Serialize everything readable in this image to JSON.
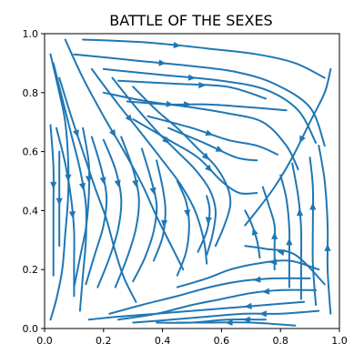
{
  "chart_data": {
    "type": "streamplot",
    "title": "BATTLE OF THE SEXES",
    "xlabel": "",
    "ylabel": "",
    "xlim": [
      0,
      1
    ],
    "ylim": [
      0,
      1
    ],
    "xticks": [
      "0.0",
      "0.2",
      "0.4",
      "0.6",
      "0.8",
      "1.0"
    ],
    "yticks": [
      "0.0",
      "0.2",
      "0.4",
      "0.6",
      "0.8",
      "1.0"
    ],
    "grid": false,
    "line_color": "#1f77b4",
    "interior_equilibrium": [
      0.67,
      0.33
    ],
    "streamlines": [
      {
        "points": [
          [
            0.13,
            0.98
          ],
          [
            0.35,
            0.97
          ],
          [
            0.55,
            0.95
          ],
          [
            0.72,
            0.93
          ],
          [
            0.85,
            0.9
          ],
          [
            0.95,
            0.85
          ]
        ],
        "arrow": 2
      },
      {
        "points": [
          [
            0.1,
            0.93
          ],
          [
            0.3,
            0.91
          ],
          [
            0.5,
            0.89
          ],
          [
            0.65,
            0.87
          ],
          [
            0.78,
            0.83
          ],
          [
            0.9,
            0.75
          ],
          [
            0.95,
            0.62
          ]
        ],
        "arrow": 2
      },
      {
        "points": [
          [
            0.2,
            0.88
          ],
          [
            0.4,
            0.86
          ],
          [
            0.6,
            0.84
          ],
          [
            0.75,
            0.81
          ],
          [
            0.86,
            0.74
          ],
          [
            0.92,
            0.63
          ]
        ],
        "arrow": 2
      },
      {
        "points": [
          [
            0.25,
            0.84
          ],
          [
            0.45,
            0.83
          ],
          [
            0.62,
            0.82
          ],
          [
            0.75,
            0.78
          ]
        ],
        "arrow": 2
      },
      {
        "points": [
          [
            0.2,
            0.8
          ],
          [
            0.35,
            0.77
          ],
          [
            0.5,
            0.75
          ],
          [
            0.62,
            0.73
          ],
          [
            0.74,
            0.7
          ],
          [
            0.82,
            0.62
          ],
          [
            0.86,
            0.54
          ]
        ],
        "arrow": 2
      },
      {
        "points": [
          [
            0.28,
            0.77
          ],
          [
            0.42,
            0.76
          ],
          [
            0.55,
            0.76
          ],
          [
            0.7,
            0.75
          ],
          [
            0.82,
            0.74
          ]
        ],
        "arrow": 2
      },
      {
        "points": [
          [
            0.35,
            0.72
          ],
          [
            0.5,
            0.68
          ],
          [
            0.62,
            0.64
          ],
          [
            0.72,
            0.62
          ],
          [
            0.79,
            0.59
          ]
        ],
        "arrow": 2
      },
      {
        "points": [
          [
            0.42,
            0.68
          ],
          [
            0.54,
            0.63
          ],
          [
            0.65,
            0.58
          ],
          [
            0.72,
            0.57
          ]
        ],
        "arrow": 2
      },
      {
        "points": [
          [
            0.3,
            0.71
          ],
          [
            0.42,
            0.64
          ],
          [
            0.52,
            0.58
          ],
          [
            0.6,
            0.5
          ],
          [
            0.66,
            0.46
          ],
          [
            0.72,
            0.46
          ]
        ],
        "arrow": 3
      },
      {
        "points": [
          [
            0.07,
            0.98
          ],
          [
            0.13,
            0.85
          ],
          [
            0.2,
            0.72
          ],
          [
            0.27,
            0.6
          ],
          [
            0.33,
            0.49
          ],
          [
            0.38,
            0.38
          ],
          [
            0.43,
            0.28
          ],
          [
            0.47,
            0.2
          ]
        ],
        "arrow": 3
      },
      {
        "points": [
          [
            0.16,
            0.88
          ],
          [
            0.25,
            0.76
          ],
          [
            0.33,
            0.66
          ],
          [
            0.4,
            0.57
          ],
          [
            0.46,
            0.49
          ],
          [
            0.51,
            0.4
          ],
          [
            0.54,
            0.3
          ],
          [
            0.55,
            0.22
          ]
        ],
        "arrow": 2
      },
      {
        "points": [
          [
            0.23,
            0.85
          ],
          [
            0.31,
            0.75
          ],
          [
            0.38,
            0.67
          ],
          [
            0.45,
            0.6
          ],
          [
            0.51,
            0.54
          ],
          [
            0.56,
            0.47
          ],
          [
            0.58,
            0.4
          ],
          [
            0.57,
            0.32
          ],
          [
            0.55,
            0.25
          ]
        ],
        "arrow": 3
      },
      {
        "points": [
          [
            0.3,
            0.82
          ],
          [
            0.38,
            0.74
          ],
          [
            0.45,
            0.68
          ],
          [
            0.52,
            0.61
          ],
          [
            0.58,
            0.55
          ],
          [
            0.62,
            0.48
          ],
          [
            0.63,
            0.42
          ],
          [
            0.61,
            0.35
          ],
          [
            0.58,
            0.28
          ]
        ],
        "arrow": 4
      },
      {
        "points": [
          [
            0.05,
            0.85
          ],
          [
            0.09,
            0.72
          ],
          [
            0.13,
            0.6
          ],
          [
            0.17,
            0.48
          ],
          [
            0.21,
            0.37
          ],
          [
            0.24,
            0.26
          ],
          [
            0.27,
            0.17
          ],
          [
            0.31,
            0.09
          ]
        ],
        "arrow": 2
      },
      {
        "points": [
          [
            0.04,
            0.68
          ],
          [
            0.07,
            0.56
          ],
          [
            0.09,
            0.44
          ],
          [
            0.1,
            0.33
          ],
          [
            0.1,
            0.22
          ],
          [
            0.1,
            0.11
          ]
        ],
        "arrow": 3
      },
      {
        "points": [
          [
            0.03,
            0.9
          ],
          [
            0.06,
            0.78
          ],
          [
            0.09,
            0.66
          ],
          [
            0.12,
            0.54
          ],
          [
            0.14,
            0.42
          ],
          [
            0.14,
            0.3
          ],
          [
            0.13,
            0.18
          ],
          [
            0.12,
            0.06
          ]
        ],
        "arrow": 4
      },
      {
        "points": [
          [
            0.02,
            0.69
          ],
          [
            0.03,
            0.55
          ],
          [
            0.03,
            0.42
          ],
          [
            0.03,
            0.3
          ],
          [
            0.03,
            0.18
          ]
        ],
        "arrow": 2
      },
      {
        "points": [
          [
            0.05,
            0.6
          ],
          [
            0.05,
            0.48
          ],
          [
            0.05,
            0.38
          ],
          [
            0.05,
            0.28
          ]
        ],
        "arrow": 2
      },
      {
        "points": [
          [
            0.02,
            0.93
          ],
          [
            0.05,
            0.8
          ],
          [
            0.07,
            0.7
          ],
          [
            0.08,
            0.57
          ],
          [
            0.08,
            0.45
          ],
          [
            0.07,
            0.32
          ],
          [
            0.06,
            0.2
          ],
          [
            0.04,
            0.1
          ],
          [
            0.02,
            0.03
          ]
        ],
        "arrow": 4
      },
      {
        "points": [
          [
            0.13,
            0.68
          ],
          [
            0.15,
            0.56
          ],
          [
            0.15,
            0.45
          ],
          [
            0.14,
            0.34
          ],
          [
            0.12,
            0.24
          ],
          [
            0.1,
            0.14
          ]
        ],
        "arrow": 2
      },
      {
        "points": [
          [
            0.16,
            0.65
          ],
          [
            0.19,
            0.55
          ],
          [
            0.21,
            0.45
          ],
          [
            0.2,
            0.35
          ],
          [
            0.17,
            0.25
          ],
          [
            0.14,
            0.15
          ]
        ],
        "arrow": 2
      },
      {
        "points": [
          [
            0.2,
            0.64
          ],
          [
            0.24,
            0.54
          ],
          [
            0.26,
            0.44
          ],
          [
            0.25,
            0.34
          ],
          [
            0.22,
            0.24
          ],
          [
            0.18,
            0.14
          ]
        ],
        "arrow": 2
      },
      {
        "points": [
          [
            0.26,
            0.65
          ],
          [
            0.3,
            0.54
          ],
          [
            0.32,
            0.44
          ],
          [
            0.31,
            0.34
          ],
          [
            0.28,
            0.24
          ],
          [
            0.24,
            0.14
          ]
        ],
        "arrow": 2
      },
      {
        "points": [
          [
            0.33,
            0.61
          ],
          [
            0.36,
            0.51
          ],
          [
            0.38,
            0.42
          ],
          [
            0.37,
            0.33
          ],
          [
            0.34,
            0.24
          ],
          [
            0.3,
            0.16
          ]
        ],
        "arrow": 2
      },
      {
        "points": [
          [
            0.38,
            0.57
          ],
          [
            0.4,
            0.48
          ],
          [
            0.41,
            0.4
          ],
          [
            0.4,
            0.31
          ],
          [
            0.37,
            0.23
          ]
        ],
        "arrow": 3
      },
      {
        "points": [
          [
            0.45,
            0.5
          ],
          [
            0.48,
            0.43
          ],
          [
            0.49,
            0.35
          ],
          [
            0.48,
            0.26
          ],
          [
            0.45,
            0.18
          ]
        ],
        "arrow": 2
      },
      {
        "points": [
          [
            0.55,
            0.45
          ],
          [
            0.56,
            0.4
          ],
          [
            0.55,
            0.33
          ],
          [
            0.52,
            0.26
          ]
        ],
        "arrow": 2
      },
      {
        "points": [
          [
            0.97,
            0.88
          ],
          [
            0.95,
            0.8
          ],
          [
            0.9,
            0.7
          ],
          [
            0.84,
            0.58
          ],
          [
            0.78,
            0.48
          ],
          [
            0.72,
            0.4
          ],
          [
            0.68,
            0.35
          ]
        ],
        "arrow": 3
      },
      {
        "points": [
          [
            0.97,
            0.05
          ],
          [
            0.96,
            0.2
          ],
          [
            0.96,
            0.35
          ],
          [
            0.95,
            0.5
          ],
          [
            0.93,
            0.62
          ]
        ],
        "arrow": 2
      },
      {
        "points": [
          [
            0.92,
            0.08
          ],
          [
            0.91,
            0.22
          ],
          [
            0.91,
            0.35
          ],
          [
            0.91,
            0.48
          ],
          [
            0.9,
            0.58
          ]
        ],
        "arrow": 3
      },
      {
        "points": [
          [
            0.87,
            0.1
          ],
          [
            0.87,
            0.22
          ],
          [
            0.87,
            0.34
          ],
          [
            0.86,
            0.45
          ],
          [
            0.84,
            0.56
          ]
        ],
        "arrow": 3
      },
      {
        "points": [
          [
            0.83,
            0.14
          ],
          [
            0.83,
            0.25
          ],
          [
            0.83,
            0.34
          ],
          [
            0.82,
            0.44
          ],
          [
            0.8,
            0.52
          ]
        ],
        "arrow": 2
      },
      {
        "points": [
          [
            0.78,
            0.2
          ],
          [
            0.78,
            0.28
          ],
          [
            0.78,
            0.35
          ],
          [
            0.76,
            0.42
          ],
          [
            0.74,
            0.48
          ]
        ],
        "arrow": 2
      },
      {
        "points": [
          [
            0.73,
            0.24
          ],
          [
            0.72,
            0.3
          ],
          [
            0.7,
            0.36
          ],
          [
            0.68,
            0.4
          ]
        ],
        "arrow": 2
      },
      {
        "points": [
          [
            0.95,
            0.15
          ],
          [
            0.85,
            0.25
          ],
          [
            0.75,
            0.27
          ],
          [
            0.68,
            0.28
          ]
        ],
        "arrow": 2
      },
      {
        "points": [
          [
            0.93,
            0.2
          ],
          [
            0.83,
            0.23
          ],
          [
            0.72,
            0.22
          ],
          [
            0.63,
            0.2
          ],
          [
            0.55,
            0.17
          ],
          [
            0.45,
            0.14
          ]
        ],
        "arrow": 2
      },
      {
        "points": [
          [
            0.9,
            0.17
          ],
          [
            0.78,
            0.17
          ],
          [
            0.66,
            0.16
          ],
          [
            0.56,
            0.14
          ],
          [
            0.45,
            0.11
          ],
          [
            0.33,
            0.08
          ],
          [
            0.22,
            0.05
          ]
        ],
        "arrow": 2
      },
      {
        "points": [
          [
            0.92,
            0.13
          ],
          [
            0.8,
            0.13
          ],
          [
            0.7,
            0.12
          ],
          [
            0.6,
            0.1
          ],
          [
            0.5,
            0.08
          ],
          [
            0.38,
            0.05
          ],
          [
            0.25,
            0.03
          ]
        ],
        "arrow": 2
      },
      {
        "points": [
          [
            0.88,
            0.09
          ],
          [
            0.75,
            0.08
          ],
          [
            0.63,
            0.07
          ],
          [
            0.5,
            0.06
          ],
          [
            0.38,
            0.05
          ],
          [
            0.25,
            0.04
          ],
          [
            0.15,
            0.03
          ]
        ],
        "arrow": 2
      },
      {
        "points": [
          [
            0.93,
            0.06
          ],
          [
            0.8,
            0.05
          ],
          [
            0.68,
            0.05
          ],
          [
            0.55,
            0.04
          ],
          [
            0.43,
            0.03
          ],
          [
            0.3,
            0.02
          ]
        ],
        "arrow": 2
      },
      {
        "points": [
          [
            0.75,
            0.03
          ],
          [
            0.62,
            0.03
          ],
          [
            0.5,
            0.02
          ],
          [
            0.38,
            0.02
          ]
        ],
        "arrow": 1
      },
      {
        "points": [
          [
            0.85,
            0.01
          ],
          [
            0.7,
            0.02
          ],
          [
            0.55,
            0.02
          ],
          [
            0.45,
            0.02
          ]
        ],
        "arrow": 2
      }
    ]
  }
}
